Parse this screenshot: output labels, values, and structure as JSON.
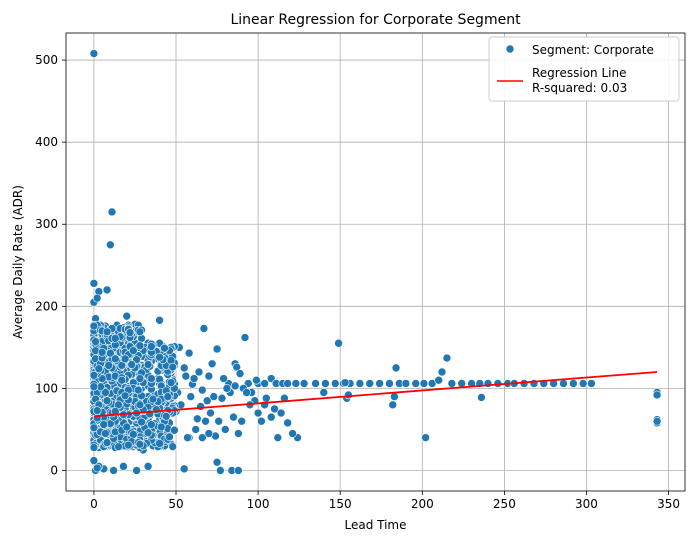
{
  "chart_data": {
    "type": "scatter",
    "title": "Linear Regression for Corporate Segment",
    "xlabel": "Lead Time",
    "ylabel": "Average Daily Rate (ADR)",
    "xlim": [
      -17,
      360
    ],
    "ylim": [
      -25,
      533
    ],
    "xticks": [
      0,
      50,
      100,
      150,
      200,
      250,
      300,
      350
    ],
    "yticks": [
      0,
      100,
      200,
      300,
      400,
      500
    ],
    "grid": true,
    "legend_position": "top-right",
    "colors": {
      "points": "#1f77b4",
      "regression": "#ff0000"
    },
    "legend": [
      {
        "label": "Segment: Corporate",
        "marker": "point"
      },
      {
        "label": "Regression Line\nR-squared: 0.03",
        "marker": "line"
      }
    ],
    "regression": {
      "x": [
        0,
        343
      ],
      "y": [
        66,
        120
      ],
      "r_squared": 0.03
    },
    "points": [
      [
        0,
        508
      ],
      [
        0,
        228
      ],
      [
        3,
        218
      ],
      [
        8,
        220
      ],
      [
        11,
        315
      ],
      [
        10,
        275
      ],
      [
        0,
        205
      ],
      [
        2,
        210
      ],
      [
        40,
        183
      ],
      [
        20,
        188
      ],
      [
        14,
        160
      ],
      [
        25,
        178
      ],
      [
        29,
        170
      ],
      [
        36,
        143
      ],
      [
        1,
        185
      ],
      [
        5,
        170
      ],
      [
        48,
        135
      ],
      [
        52,
        150
      ],
      [
        58,
        143
      ],
      [
        64,
        120
      ],
      [
        67,
        173
      ],
      [
        72,
        130
      ],
      [
        75,
        148
      ],
      [
        55,
        125
      ],
      [
        60,
        105
      ],
      [
        66,
        98
      ],
      [
        70,
        115
      ],
      [
        78,
        88
      ],
      [
        82,
        106
      ],
      [
        86,
        130
      ],
      [
        87,
        126
      ],
      [
        92,
        162
      ],
      [
        94,
        106
      ],
      [
        98,
        85
      ],
      [
        100,
        106
      ],
      [
        104,
        106
      ],
      [
        108,
        112
      ],
      [
        111,
        106
      ],
      [
        115,
        106
      ],
      [
        118,
        106
      ],
      [
        123,
        106
      ],
      [
        128,
        106
      ],
      [
        135,
        106
      ],
      [
        141,
        106
      ],
      [
        147,
        106
      ],
      [
        149,
        155
      ],
      [
        152,
        106
      ],
      [
        154,
        88
      ],
      [
        156,
        106
      ],
      [
        162,
        106
      ],
      [
        168,
        106
      ],
      [
        174,
        106
      ],
      [
        180,
        106
      ],
      [
        184,
        125
      ],
      [
        186,
        106
      ],
      [
        190,
        106
      ],
      [
        196,
        106
      ],
      [
        201,
        106
      ],
      [
        206,
        106
      ],
      [
        210,
        110
      ],
      [
        212,
        120
      ],
      [
        215,
        137
      ],
      [
        218,
        106
      ],
      [
        224,
        106
      ],
      [
        230,
        106
      ],
      [
        235,
        106
      ],
      [
        236,
        89
      ],
      [
        240,
        106
      ],
      [
        246,
        106
      ],
      [
        252,
        106
      ],
      [
        256,
        106
      ],
      [
        262,
        106
      ],
      [
        268,
        106
      ],
      [
        274,
        106
      ],
      [
        280,
        106
      ],
      [
        286,
        106
      ],
      [
        292,
        106
      ],
      [
        298,
        106
      ],
      [
        303,
        106
      ],
      [
        343,
        95
      ],
      [
        343,
        92
      ],
      [
        343,
        62
      ],
      [
        343,
        58
      ],
      [
        343,
        60
      ],
      [
        202,
        40
      ],
      [
        182,
        80
      ],
      [
        183,
        90
      ],
      [
        155,
        92
      ],
      [
        153,
        107
      ],
      [
        140,
        95
      ],
      [
        124,
        40
      ],
      [
        121,
        45
      ],
      [
        118,
        58
      ],
      [
        114,
        70
      ],
      [
        112,
        40
      ],
      [
        108,
        65
      ],
      [
        104,
        80
      ],
      [
        100,
        70
      ],
      [
        95,
        80
      ],
      [
        90,
        60
      ],
      [
        88,
        45
      ],
      [
        85,
        65
      ],
      [
        80,
        50
      ],
      [
        77,
        0
      ],
      [
        74,
        42
      ],
      [
        70,
        45
      ],
      [
        66,
        40
      ],
      [
        62,
        50
      ],
      [
        58,
        40
      ],
      [
        55,
        2
      ],
      [
        50,
        72
      ],
      [
        46,
        35
      ],
      [
        42,
        60
      ],
      [
        38,
        45
      ],
      [
        34,
        55
      ],
      [
        30,
        25
      ],
      [
        26,
        0
      ],
      [
        22,
        40
      ],
      [
        18,
        5
      ],
      [
        15,
        30
      ],
      [
        12,
        0
      ],
      [
        9,
        45
      ],
      [
        6,
        2
      ],
      [
        3,
        5
      ],
      [
        1,
        0
      ],
      [
        0,
        12
      ],
      [
        2,
        3
      ],
      [
        75,
        10
      ],
      [
        84,
        0
      ],
      [
        88,
        0
      ],
      [
        33,
        5
      ],
      [
        44,
        68
      ],
      [
        47,
        90
      ],
      [
        53,
        80
      ],
      [
        57,
        40
      ],
      [
        63,
        63
      ],
      [
        68,
        60
      ],
      [
        73,
        90
      ],
      [
        79,
        112
      ],
      [
        83,
        95
      ],
      [
        86,
        103
      ],
      [
        89,
        118
      ],
      [
        91,
        100
      ],
      [
        96,
        95
      ],
      [
        105,
        88
      ],
      [
        110,
        75
      ],
      [
        116,
        88
      ],
      [
        102,
        60
      ],
      [
        99,
        110
      ],
      [
        93,
        95
      ],
      [
        81,
        100
      ],
      [
        76,
        60
      ],
      [
        71,
        70
      ],
      [
        69,
        85
      ],
      [
        65,
        78
      ],
      [
        61,
        112
      ],
      [
        59,
        90
      ],
      [
        56,
        115
      ],
      [
        51,
        95
      ],
      [
        49,
        105
      ],
      [
        45,
        118
      ],
      [
        43,
        100
      ],
      [
        41,
        130
      ],
      [
        39,
        110
      ],
      [
        37,
        90
      ],
      [
        35,
        100
      ],
      [
        32,
        115
      ],
      [
        31,
        75
      ],
      [
        28,
        95
      ],
      [
        27,
        120
      ],
      [
        24,
        105
      ],
      [
        23,
        85
      ],
      [
        21,
        130
      ],
      [
        19,
        100
      ],
      [
        17,
        115
      ],
      [
        16,
        90
      ],
      [
        13,
        140
      ],
      [
        12,
        110
      ],
      [
        11,
        95
      ],
      [
        10,
        150
      ],
      [
        9,
        120
      ],
      [
        8,
        100
      ],
      [
        7,
        135
      ],
      [
        6,
        90
      ],
      [
        5,
        115
      ],
      [
        4,
        150
      ],
      [
        3,
        95
      ],
      [
        2,
        130
      ],
      [
        1,
        110
      ],
      [
        0,
        95
      ],
      [
        0,
        60
      ],
      [
        0,
        40
      ],
      [
        1,
        70
      ],
      [
        2,
        50
      ],
      [
        3,
        80
      ],
      [
        4,
        35
      ],
      [
        5,
        55
      ],
      [
        6,
        65
      ],
      [
        7,
        45
      ],
      [
        8,
        75
      ],
      [
        9,
        30
      ],
      [
        10,
        60
      ],
      [
        11,
        85
      ],
      [
        12,
        50
      ],
      [
        13,
        70
      ],
      [
        14,
        40
      ],
      [
        15,
        95
      ],
      [
        16,
        55
      ],
      [
        17,
        80
      ],
      [
        18,
        45
      ],
      [
        19,
        65
      ],
      [
        20,
        35
      ],
      [
        21,
        90
      ],
      [
        22,
        60
      ],
      [
        23,
        75
      ],
      [
        24,
        50
      ],
      [
        25,
        85
      ],
      [
        26,
        40
      ],
      [
        27,
        70
      ],
      [
        28,
        55
      ],
      [
        29,
        100
      ],
      [
        30,
        65
      ],
      [
        31,
        45
      ],
      [
        32,
        80
      ],
      [
        33,
        60
      ],
      [
        34,
        90
      ]
    ]
  }
}
